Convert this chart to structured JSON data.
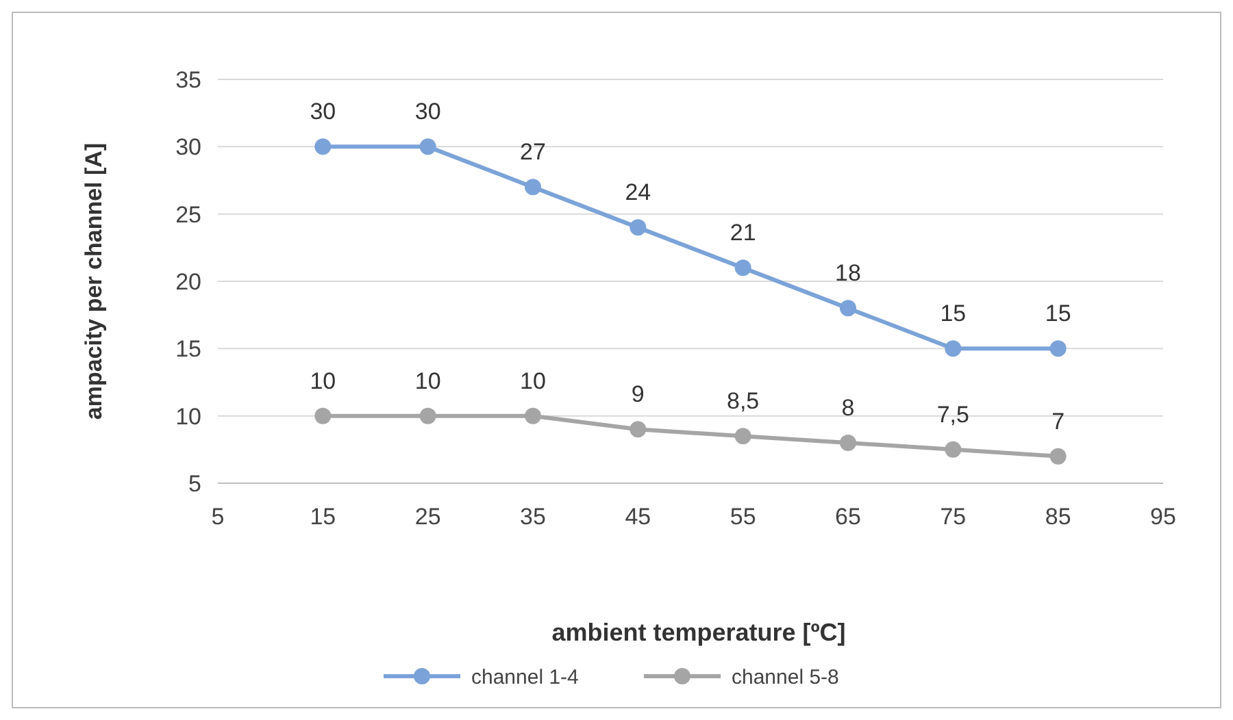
{
  "chart_data": {
    "type": "line",
    "xlabel": "ambient temperature [ºC]",
    "ylabel": "ampacity per channel [A]",
    "x": [
      15,
      25,
      35,
      45,
      55,
      65,
      75,
      85
    ],
    "series": [
      {
        "name": "channel 1-4",
        "color": "#7ba3d9",
        "values": [
          30,
          30,
          27,
          24,
          21,
          18,
          15,
          15
        ],
        "value_labels": [
          "30",
          "30",
          "27",
          "24",
          "21",
          "18",
          "15",
          "15"
        ]
      },
      {
        "name": "channel 5-8",
        "color": "#a5a5a5",
        "values": [
          10,
          10,
          10,
          9,
          8.5,
          8,
          7.5,
          7
        ],
        "value_labels": [
          "10",
          "10",
          "10",
          "9",
          "8,5",
          "8",
          "7,5",
          "7"
        ]
      }
    ],
    "xlim": [
      5,
      95
    ],
    "xticks": [
      5,
      15,
      25,
      35,
      45,
      55,
      65,
      75,
      85,
      95
    ],
    "ylim": [
      5,
      35
    ],
    "yticks": [
      5,
      10,
      15,
      20,
      25,
      30,
      35
    ],
    "grid": "y",
    "legend": "bottom",
    "marker": "circle",
    "line_style": "solid"
  }
}
